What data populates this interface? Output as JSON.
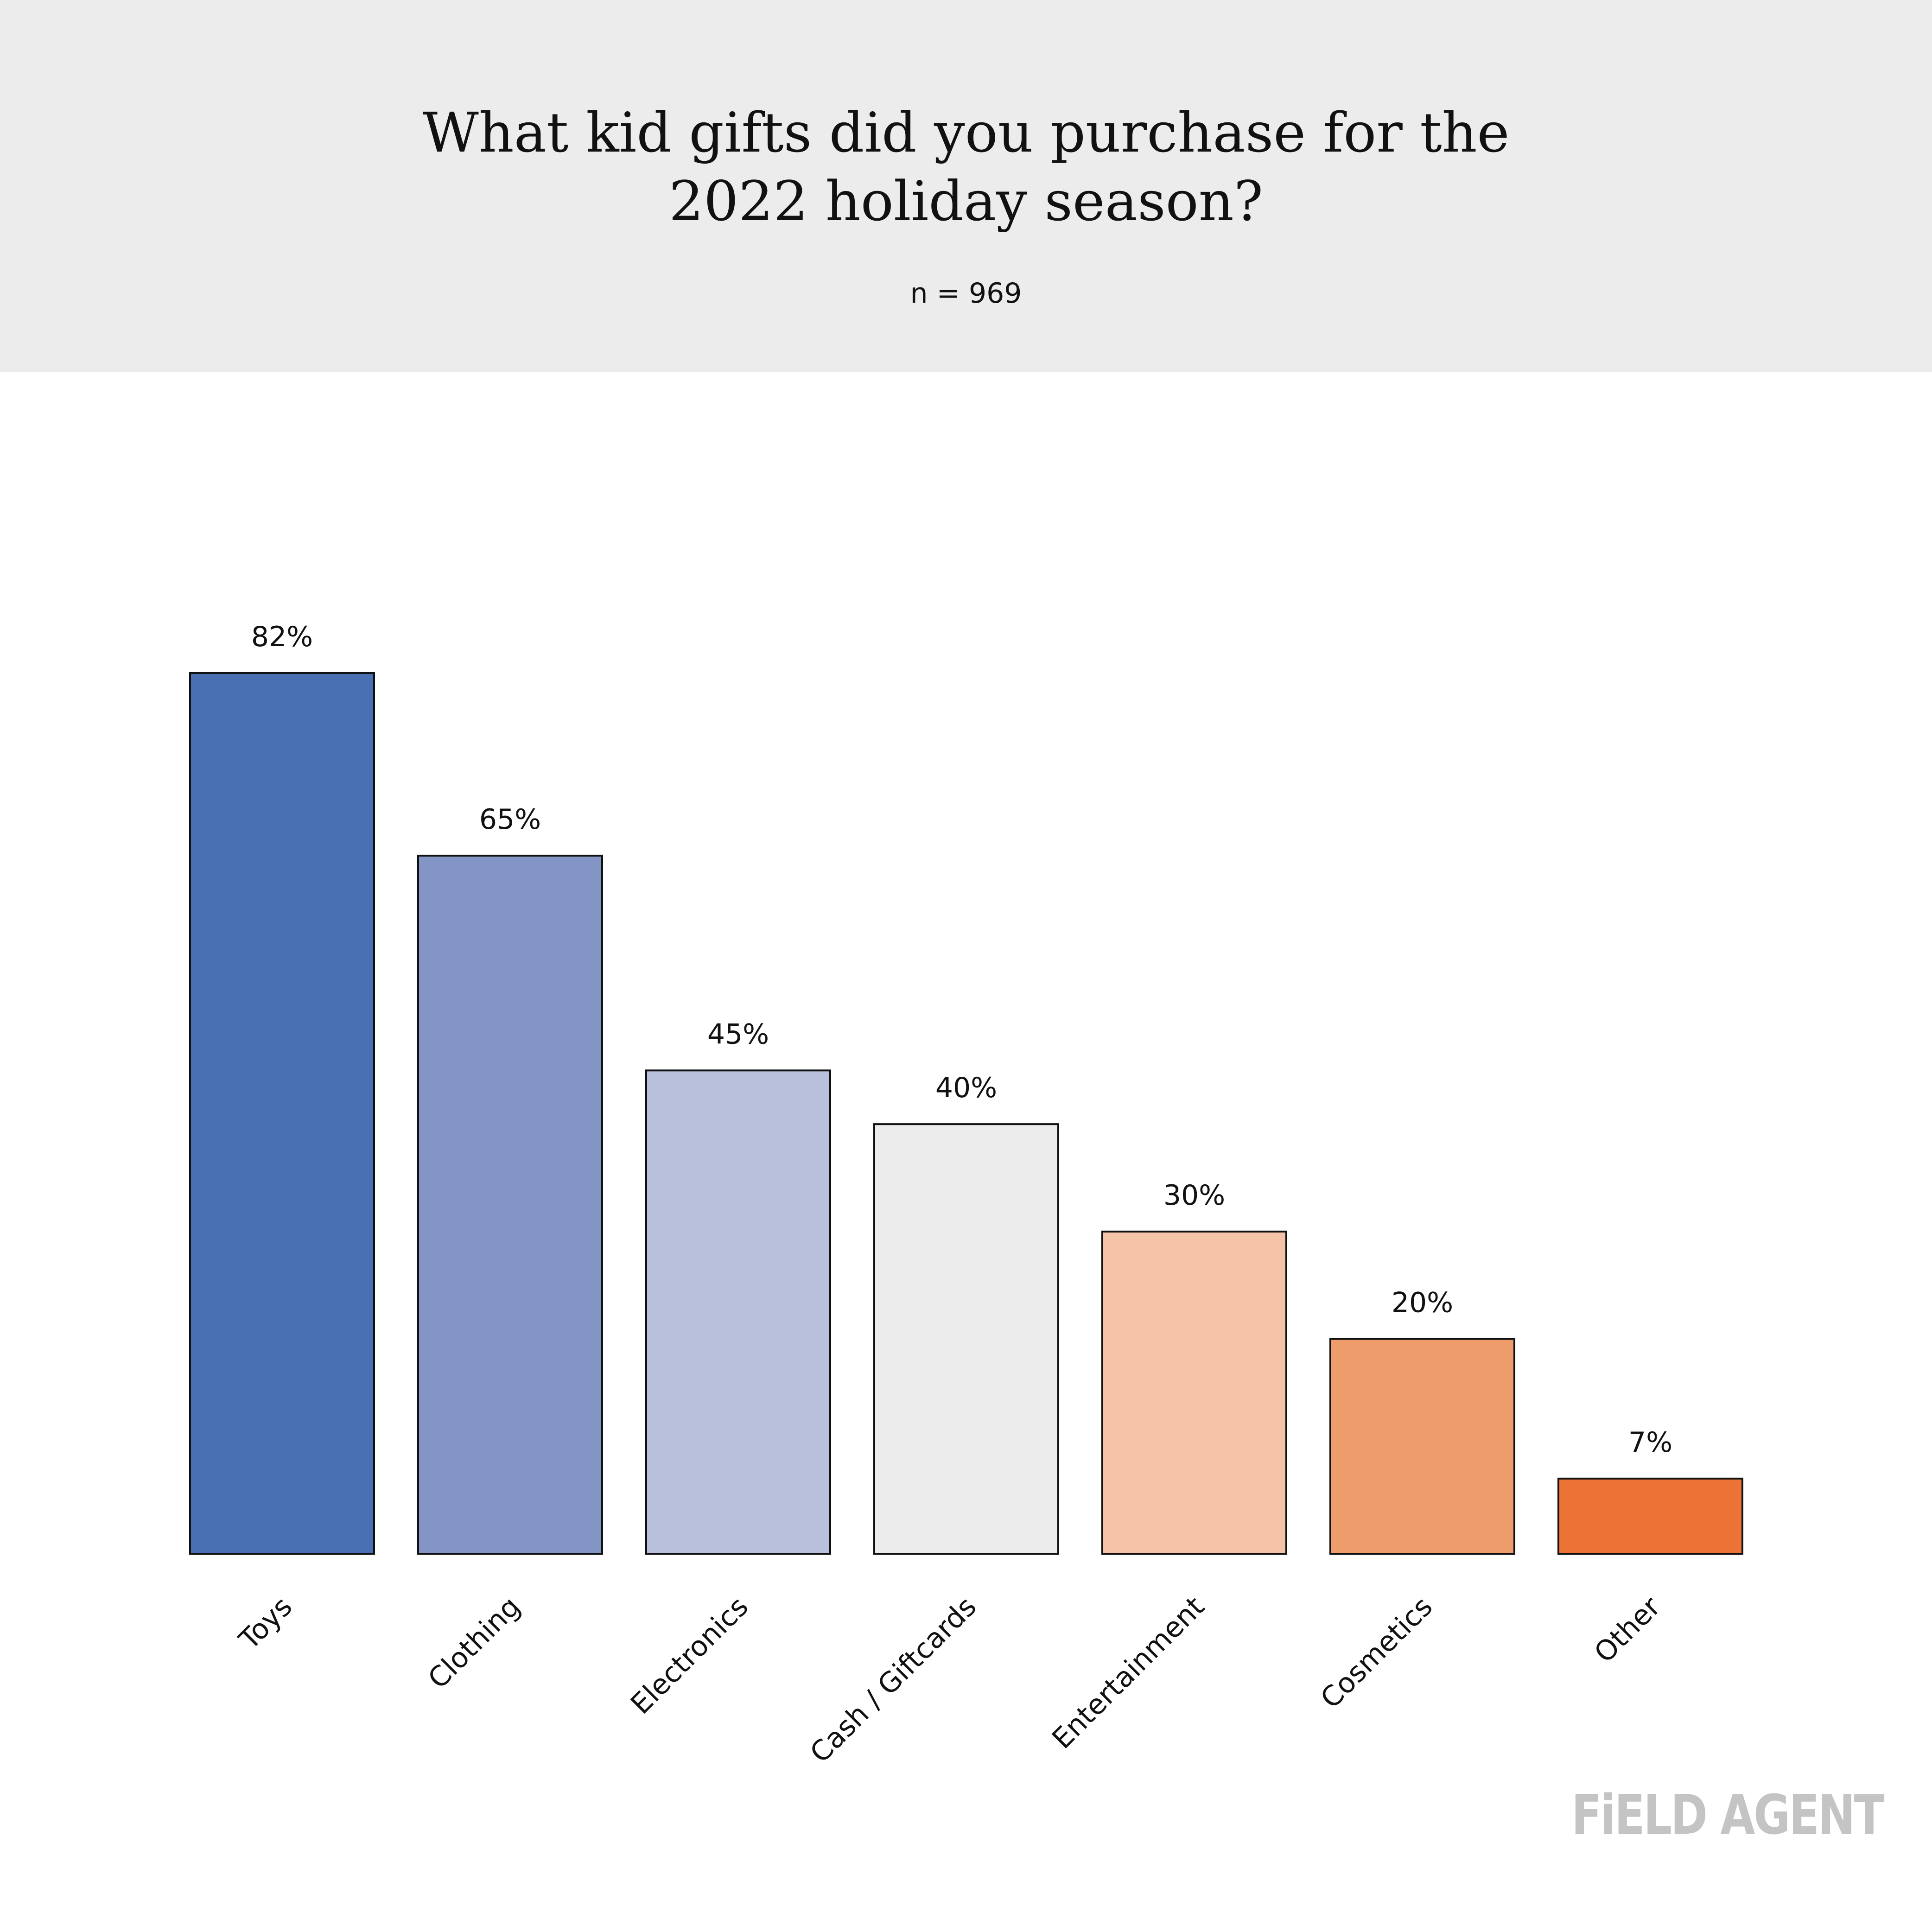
{
  "chart_data": {
    "type": "bar",
    "title_lines": [
      "What kid gifts did you purchase for the",
      "2022 holiday season?"
    ],
    "subtitle": "n = 969",
    "categories": [
      "Toys",
      "Clothing",
      "Electronics",
      "Cash / Giftcards",
      "Entertainment",
      "Cosmetics",
      "Other"
    ],
    "values": [
      82,
      65,
      45,
      40,
      30,
      20,
      7
    ],
    "value_labels": [
      "82%",
      "65%",
      "45%",
      "40%",
      "30%",
      "20%",
      "7%"
    ],
    "colors": [
      "#4870b3",
      "#8395c5",
      "#b8c0dc",
      "#ececec",
      "#f4c3a8",
      "#ef9c6c",
      "#ec7335"
    ],
    "ylim": [
      0,
      82
    ],
    "grid": false,
    "legend": "none"
  },
  "branding": {
    "logo_text": "FiELD AGENT"
  }
}
